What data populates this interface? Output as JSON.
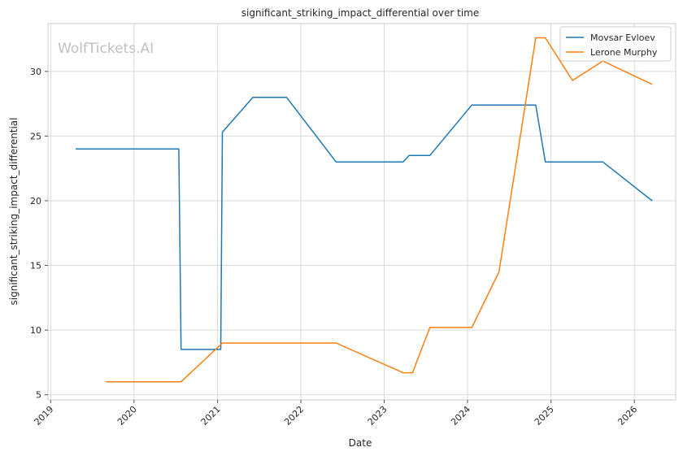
{
  "watermark": "WolfTickets.AI",
  "chart_data": {
    "type": "line",
    "title": "significant_striking_impact_differential over time",
    "xlabel": "Date",
    "ylabel": "significant_striking_impact_differential",
    "x_ticks": [
      "2019",
      "2020",
      "2021",
      "2022",
      "2023",
      "2024",
      "2025",
      "2026"
    ],
    "y_ticks": [
      5,
      10,
      15,
      20,
      25,
      30
    ],
    "xlim": [
      "2018-12-20",
      "2026-07-01"
    ],
    "ylim": [
      4.6,
      33.7
    ],
    "grid": true,
    "legend_position": "top-right",
    "series": [
      {
        "name": "Movsar Evloev",
        "color": "#1f77b4",
        "points": [
          [
            "2019-04-20",
            24.0
          ],
          [
            "2020-07-15",
            24.0
          ],
          [
            "2020-07-25",
            8.5
          ],
          [
            "2021-01-15",
            8.5
          ],
          [
            "2021-01-22",
            25.3
          ],
          [
            "2021-06-05",
            28.0
          ],
          [
            "2021-10-30",
            28.0
          ],
          [
            "2022-06-04",
            23.0
          ],
          [
            "2023-03-25",
            23.0
          ],
          [
            "2023-04-20",
            23.5
          ],
          [
            "2023-07-20",
            23.5
          ],
          [
            "2024-01-20",
            27.4
          ],
          [
            "2024-10-26",
            27.4
          ],
          [
            "2024-12-07",
            23.0
          ],
          [
            "2025-08-16",
            23.0
          ],
          [
            "2026-03-20",
            20.0
          ]
        ]
      },
      {
        "name": "Lerone Murphy",
        "color": "#ff7f0e",
        "points": [
          [
            "2019-08-31",
            6.0
          ],
          [
            "2020-07-25",
            6.0
          ],
          [
            "2021-01-22",
            9.0
          ],
          [
            "2022-06-04",
            9.0
          ],
          [
            "2023-03-25",
            6.7
          ],
          [
            "2023-05-05",
            6.7
          ],
          [
            "2023-07-20",
            10.2
          ],
          [
            "2024-01-20",
            10.2
          ],
          [
            "2024-05-18",
            14.5
          ],
          [
            "2024-10-26",
            32.6
          ],
          [
            "2024-12-07",
            32.6
          ],
          [
            "2025-04-05",
            29.3
          ],
          [
            "2025-08-16",
            30.8
          ],
          [
            "2026-03-20",
            29.0
          ]
        ]
      }
    ]
  }
}
